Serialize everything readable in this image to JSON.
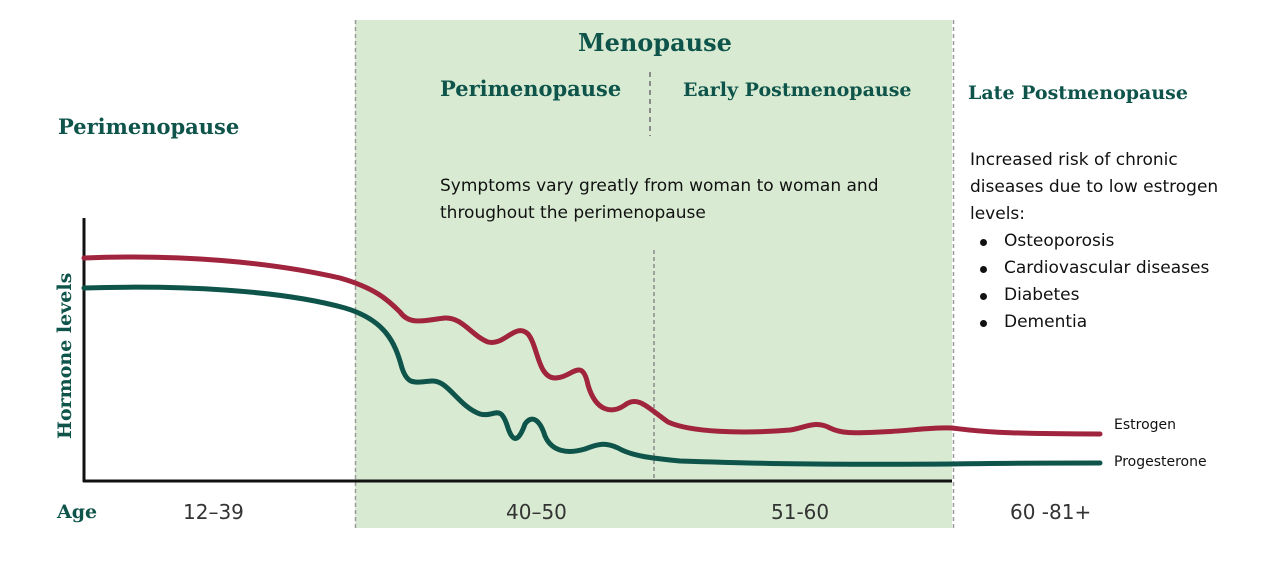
{
  "colors": {
    "band": "#d8ebd2",
    "heading": "#0e544a",
    "estrogen": "#a0243e",
    "progesterone": "#0e544a",
    "axis": "#111111",
    "divider": "#999999"
  },
  "labels": {
    "menopause": "Menopause",
    "perimenopause_left": "Perimenopause",
    "perimenopause_band": "Perimenopause",
    "early_postmenopause": "Early Postmenopause",
    "late_postmenopause": "Late Postmenopause",
    "symptoms_note": "Symptoms vary greatly from woman to woman and throughout the perimenopause",
    "risk_intro": "Increased risk of chronic diseases due to low estrogen levels:",
    "risks": [
      "Osteoporosis",
      "Cardiovascular diseases",
      "Diabetes",
      "Dementia"
    ]
  },
  "chart_data": {
    "type": "line",
    "title": "",
    "xlabel": "Age",
    "ylabel": "Hormone levels",
    "categories": [
      "12–39",
      "40–50",
      "51-60",
      "60 -81+"
    ],
    "series": [
      {
        "name": "Estrogen",
        "color": "#a0243e"
      },
      {
        "name": "Progesterone",
        "color": "#0e544a"
      }
    ],
    "grid": false,
    "legend": "right"
  }
}
